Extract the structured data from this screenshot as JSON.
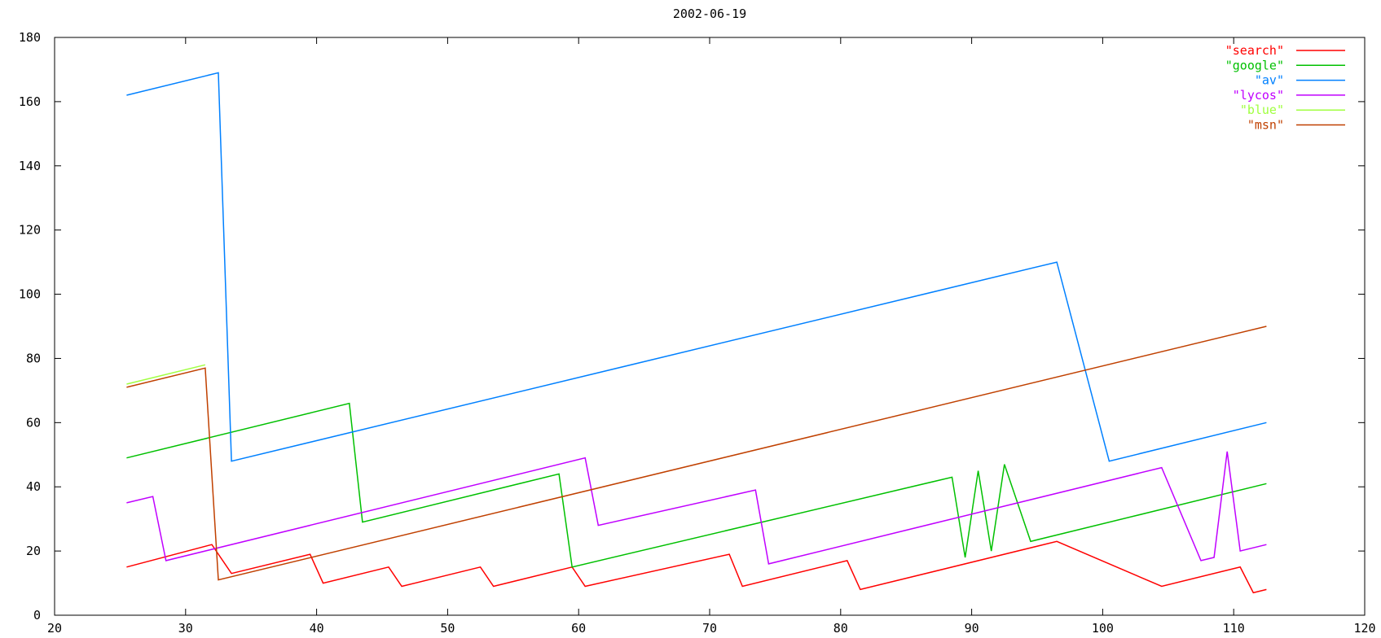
{
  "chart_data": {
    "type": "line",
    "title": "2002-06-19",
    "xlabel": "",
    "ylabel": "",
    "xlim": [
      20,
      120
    ],
    "ylim": [
      0,
      180
    ],
    "xticks": [
      20,
      30,
      40,
      50,
      60,
      70,
      80,
      90,
      100,
      110,
      120
    ],
    "yticks": [
      0,
      20,
      40,
      60,
      80,
      100,
      120,
      140,
      160,
      180
    ],
    "grid": false,
    "legend_position": "top-right",
    "series": [
      {
        "name": "\"search\"",
        "color": "#ff0000",
        "points": [
          [
            25.5,
            15
          ],
          [
            32,
            22
          ],
          [
            33.5,
            13
          ],
          [
            39.5,
            19
          ],
          [
            40.5,
            10
          ],
          [
            45.5,
            15
          ],
          [
            46.5,
            9
          ],
          [
            52.5,
            15
          ],
          [
            53.5,
            9
          ],
          [
            59.5,
            15
          ],
          [
            60.5,
            9
          ],
          [
            71.5,
            19
          ],
          [
            72.5,
            9
          ],
          [
            80.5,
            17
          ],
          [
            81.5,
            8
          ],
          [
            96.5,
            23
          ],
          [
            104.5,
            9
          ],
          [
            110.5,
            15
          ],
          [
            111.5,
            7
          ],
          [
            112.5,
            8
          ]
        ]
      },
      {
        "name": "\"google\"",
        "color": "#00c000",
        "points": [
          [
            25.5,
            49
          ],
          [
            42.5,
            66
          ],
          [
            43.5,
            29
          ],
          [
            58.5,
            44
          ],
          [
            59.5,
            15
          ],
          [
            88.5,
            43
          ],
          [
            89.5,
            18
          ],
          [
            90.5,
            45
          ],
          [
            91.5,
            20
          ],
          [
            92.5,
            47
          ],
          [
            94.5,
            23
          ],
          [
            112.5,
            41
          ]
        ]
      },
      {
        "name": "\"av\"",
        "color": "#0080ff",
        "points": [
          [
            25.5,
            162
          ],
          [
            32.5,
            169
          ],
          [
            33.5,
            48
          ],
          [
            96.5,
            110
          ],
          [
            100.5,
            48
          ],
          [
            112.5,
            60
          ]
        ]
      },
      {
        "name": "\"lycos\"",
        "color": "#c000ff",
        "points": [
          [
            25.5,
            35
          ],
          [
            27.5,
            37
          ],
          [
            28.5,
            17
          ],
          [
            60.5,
            49
          ],
          [
            61.5,
            28
          ],
          [
            73.5,
            39
          ],
          [
            74.5,
            16
          ],
          [
            104.5,
            46
          ],
          [
            107.5,
            17
          ],
          [
            108.5,
            18
          ],
          [
            109.5,
            51
          ],
          [
            110.5,
            20
          ],
          [
            112.5,
            22
          ]
        ]
      },
      {
        "name": "\"blue\"",
        "color": "#a0ff40",
        "points": [
          [
            25.5,
            72
          ],
          [
            31.5,
            78
          ]
        ]
      },
      {
        "name": "\"msn\"",
        "color": "#c04000",
        "points": [
          [
            25.5,
            71
          ],
          [
            31.5,
            77
          ],
          [
            32.5,
            11
          ],
          [
            112.5,
            90
          ]
        ]
      }
    ]
  }
}
